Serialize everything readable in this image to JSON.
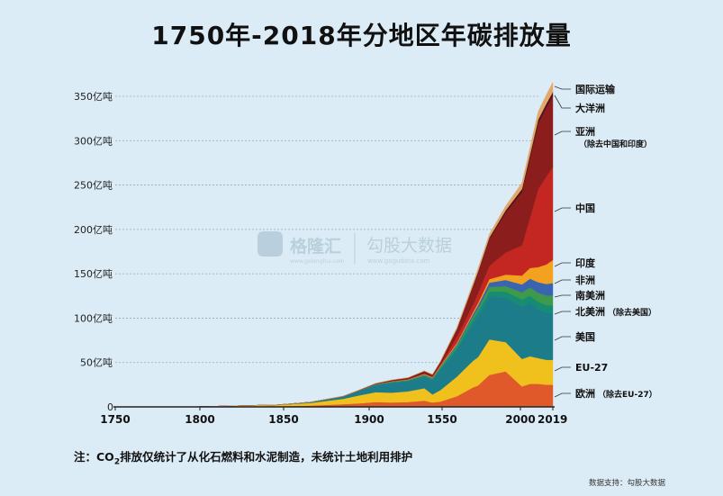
{
  "title": "1750年-2018年分地区年碳排放量",
  "note": {
    "prefix": "注：CO",
    "sub": "2",
    "rest": "排放仅统计了从化石燃料和水泥制造，未统计土地利用排护"
  },
  "source": "数据支持：勾股大数据",
  "watermark": {
    "brand": "格隆汇",
    "brand_url": "www.gelonghui.com",
    "partner": "勾股大数据",
    "partner_url": "www.gogudata.com"
  },
  "chart_data": {
    "type": "area",
    "stacked": true,
    "title": "1750年-2018年分地区年碳排放量",
    "xlabel": "",
    "ylabel": "",
    "x_ticks": [
      "1750",
      "1800",
      "1850",
      "1900",
      "1550",
      "2000",
      "2019"
    ],
    "y_ticks": [
      "0",
      "50亿吨",
      "100亿吨",
      "150亿吨",
      "200亿吨",
      "250亿吨",
      "300亿吨",
      "350亿吨"
    ],
    "ylim": [
      0,
      350
    ],
    "grid": true,
    "x": [
      1750,
      1800,
      1850,
      1870,
      1890,
      1900,
      1910,
      1920,
      1930,
      1940,
      1945,
      1950,
      1960,
      1970,
      1973,
      1980,
      1990,
      2000,
      2005,
      2010,
      2015,
      2019
    ],
    "series": [
      {
        "name": "欧洲（除去EU-27）",
        "color": "#e0592a",
        "values": [
          0,
          0.1,
          0.6,
          1.5,
          3,
          4,
          5.5,
          5,
          5.5,
          7,
          5,
          6,
          12,
          22,
          24,
          36,
          40,
          23,
          26,
          26,
          25,
          25
        ]
      },
      {
        "name": "EU-27",
        "color": "#f0c11d",
        "values": [
          0,
          0.1,
          1.5,
          3,
          6,
          9,
          11,
          11,
          12,
          14,
          9,
          13,
          22,
          30,
          32,
          40,
          33,
          31,
          31,
          29,
          28,
          28
        ]
      },
      {
        "name": "美国",
        "color": "#1c7c8a",
        "values": [
          0,
          0,
          0.2,
          0.8,
          2.5,
          5,
          8,
          11,
          11,
          13,
          16,
          23,
          30,
          42,
          46,
          48,
          50,
          59,
          60,
          55,
          53,
          53
        ]
      },
      {
        "name": "北美洲（除去美国）",
        "color": "#178c72",
        "values": [
          0,
          0,
          0,
          0.1,
          0.2,
          0.3,
          0.6,
          0.8,
          1,
          1.2,
          1.3,
          2,
          3,
          5,
          5.5,
          6,
          7,
          8,
          8.5,
          8.5,
          8.5,
          8.5
        ]
      },
      {
        "name": "南美洲",
        "color": "#3e9a4a",
        "values": [
          0,
          0,
          0,
          0,
          0.1,
          0.1,
          0.2,
          0.4,
          0.5,
          0.7,
          0.8,
          1,
          2,
          3,
          3.5,
          5,
          6,
          8,
          9,
          10,
          11,
          11
        ]
      },
      {
        "name": "非洲",
        "color": "#3a63b0",
        "values": [
          0,
          0,
          0,
          0,
          0,
          0.1,
          0.2,
          0.3,
          0.4,
          0.5,
          0.6,
          0.8,
          1.5,
          3,
          3.5,
          5,
          7,
          9,
          10,
          12,
          13,
          14
        ]
      },
      {
        "name": "印度",
        "color": "#f2a21f",
        "values": [
          0,
          0,
          0,
          0,
          0.1,
          0.2,
          0.3,
          0.4,
          0.5,
          0.7,
          0.8,
          1,
          1.5,
          2,
          2.5,
          4,
          6,
          10,
          12,
          17,
          22,
          26
        ]
      },
      {
        "name": "中国",
        "color": "#c42722",
        "values": [
          0,
          0,
          0,
          0,
          0,
          0,
          0,
          0.1,
          0.2,
          0.4,
          0.4,
          0.8,
          7,
          9,
          11,
          15,
          25,
          34,
          57,
          88,
          99,
          105
        ]
      },
      {
        "name": "亚洲（除去中国和印度）",
        "color": "#8b1d1d",
        "values": [
          0,
          0,
          0,
          0,
          0.1,
          0.2,
          0.5,
          1,
          1.5,
          2.5,
          2,
          3,
          8,
          20,
          23,
          30,
          45,
          60,
          67,
          74,
          78,
          80
        ]
      },
      {
        "name": "大洋洲",
        "color": "#4b1418",
        "values": [
          0,
          0,
          0,
          0,
          0,
          0.1,
          0.1,
          0.2,
          0.2,
          0.3,
          0.3,
          0.4,
          0.7,
          1.2,
          1.4,
          1.8,
          2.5,
          3.5,
          4,
          4.2,
          4.3,
          4.4
        ]
      },
      {
        "name": "国际运输",
        "color": "#e2a86c",
        "values": [
          0,
          0,
          0,
          0,
          0,
          0.1,
          0.2,
          0.3,
          0.4,
          0.5,
          0.6,
          1,
          2,
          3,
          3.5,
          4,
          5,
          7,
          8,
          9,
          10,
          11
        ]
      }
    ],
    "legend": {
      "placement": "right",
      "labels": [
        {
          "main": "国际运输",
          "sub": ""
        },
        {
          "main": "大洋洲",
          "sub": ""
        },
        {
          "main": "亚洲",
          "sub": "（除去中国和印度）"
        },
        {
          "main": "中国",
          "sub": ""
        },
        {
          "main": "印度",
          "sub": ""
        },
        {
          "main": "非洲",
          "sub": ""
        },
        {
          "main": "南美洲",
          "sub": ""
        },
        {
          "main": "北美洲",
          "sub": "（除去美国）"
        },
        {
          "main": "美国",
          "sub": ""
        },
        {
          "main": "EU-27",
          "sub": ""
        },
        {
          "main": "欧洲",
          "sub": "（除去EU-27）"
        }
      ]
    }
  }
}
